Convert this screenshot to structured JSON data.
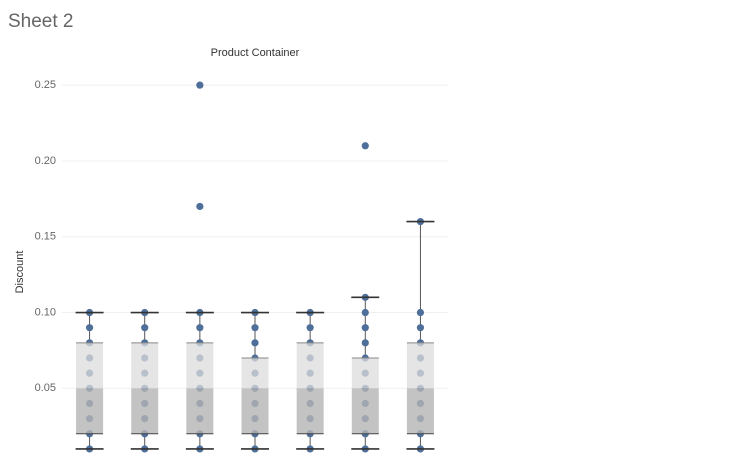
{
  "header": {
    "title": "Sheet 2"
  },
  "chart_data": {
    "type": "boxplot",
    "title": "Product Container",
    "y_label": "Discount",
    "categories": [
      null,
      null,
      null,
      null,
      null,
      null,
      null
    ],
    "boxes": [
      {
        "whisker_low": 0.01,
        "q1": 0.02,
        "median": 0.05,
        "q3": 0.08,
        "whisker_high": 0.1
      },
      {
        "whisker_low": 0.01,
        "q1": 0.02,
        "median": 0.05,
        "q3": 0.08,
        "whisker_high": 0.1
      },
      {
        "whisker_low": 0.01,
        "q1": 0.02,
        "median": 0.05,
        "q3": 0.08,
        "whisker_high": 0.1
      },
      {
        "whisker_low": 0.01,
        "q1": 0.02,
        "median": 0.05,
        "q3": 0.07,
        "whisker_high": 0.1
      },
      {
        "whisker_low": 0.01,
        "q1": 0.02,
        "median": 0.05,
        "q3": 0.08,
        "whisker_high": 0.1
      },
      {
        "whisker_low": 0.01,
        "q1": 0.02,
        "median": 0.05,
        "q3": 0.07,
        "whisker_high": 0.11
      },
      {
        "whisker_low": 0.01,
        "q1": 0.02,
        "median": 0.05,
        "q3": 0.08,
        "whisker_high": 0.16
      }
    ],
    "points": [
      [
        0.01,
        0.02,
        0.03,
        0.04,
        0.05,
        0.06,
        0.07,
        0.08,
        0.09,
        0.1
      ],
      [
        0.01,
        0.02,
        0.03,
        0.04,
        0.05,
        0.06,
        0.07,
        0.08,
        0.09,
        0.1
      ],
      [
        0.01,
        0.02,
        0.03,
        0.04,
        0.05,
        0.06,
        0.07,
        0.08,
        0.09,
        0.1,
        0.17,
        0.25
      ],
      [
        0.01,
        0.02,
        0.03,
        0.04,
        0.05,
        0.06,
        0.07,
        0.08,
        0.09,
        0.1
      ],
      [
        0.01,
        0.02,
        0.03,
        0.04,
        0.05,
        0.06,
        0.07,
        0.08,
        0.09,
        0.1
      ],
      [
        0.01,
        0.02,
        0.03,
        0.04,
        0.05,
        0.06,
        0.07,
        0.08,
        0.09,
        0.1,
        0.11,
        0.21
      ],
      [
        0.01,
        0.02,
        0.03,
        0.04,
        0.05,
        0.06,
        0.07,
        0.08,
        0.09,
        0.1,
        0.16
      ]
    ],
    "ylim": [
      0.006,
      0.26
    ],
    "yticks": [
      0.05,
      {
        "value": 0.1,
        "label": "0.10"
      },
      0.15,
      {
        "value": 0.2,
        "label": "0.20"
      },
      0.25
    ],
    "grid": true,
    "point_color": "#4e6f99",
    "upper_box_color": "#dcdcdc",
    "lower_box_color": "#b4b4b4"
  }
}
